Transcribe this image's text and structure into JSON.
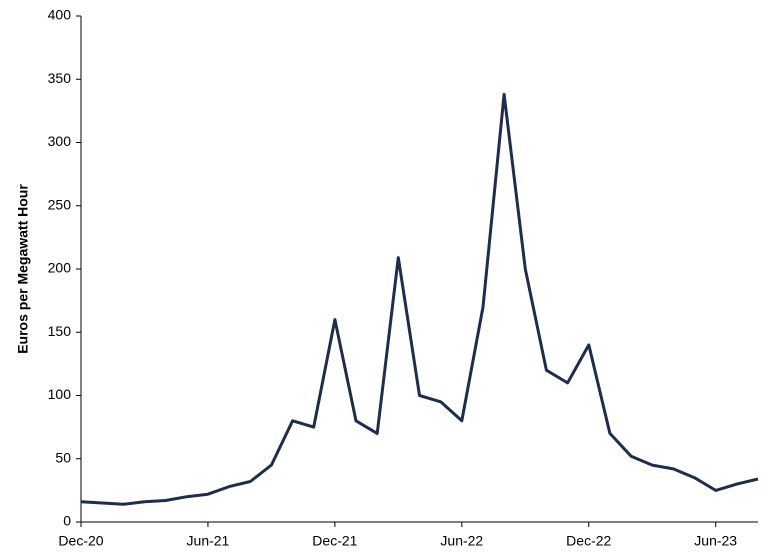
{
  "chart_data": {
    "type": "line",
    "y_label": "Euros per Megawatt Hour",
    "x": [
      "2020-12",
      "2021-01",
      "2021-02",
      "2021-03",
      "2021-04",
      "2021-05",
      "2021-06",
      "2021-07",
      "2021-08",
      "2021-09",
      "2021-10",
      "2021-11",
      "2021-12",
      "2022-01",
      "2022-02",
      "2022-03",
      "2022-04",
      "2022-05",
      "2022-06",
      "2022-07",
      "2022-08",
      "2022-09",
      "2022-10",
      "2022-11",
      "2022-12",
      "2023-01",
      "2023-02",
      "2023-03",
      "2023-04",
      "2023-05",
      "2023-06",
      "2023-07",
      "2023-08"
    ],
    "series": [
      {
        "color": "#1f2d4d",
        "values": [
          16,
          15,
          14,
          16,
          17,
          20,
          22,
          28,
          32,
          45,
          80,
          75,
          160,
          80,
          70,
          209,
          100,
          95,
          80,
          170,
          338,
          200,
          120,
          110,
          140,
          70,
          52,
          45,
          42,
          35,
          25,
          30,
          34
        ]
      }
    ],
    "xlim": [
      "2020-12",
      "2023-08"
    ],
    "xticks": [
      {
        "value": "2020-12",
        "label": "Dec-20"
      },
      {
        "value": "2021-06",
        "label": "Jun-21"
      },
      {
        "value": "2021-12",
        "label": "Dec-21"
      },
      {
        "value": "2022-06",
        "label": "Jun-22"
      },
      {
        "value": "2022-12",
        "label": "Dec-22"
      },
      {
        "value": "2023-06",
        "label": "Jun-23"
      }
    ],
    "ylim": [
      0,
      400
    ],
    "yticks": [
      0,
      50,
      100,
      150,
      200,
      250,
      300,
      350,
      400
    ]
  }
}
